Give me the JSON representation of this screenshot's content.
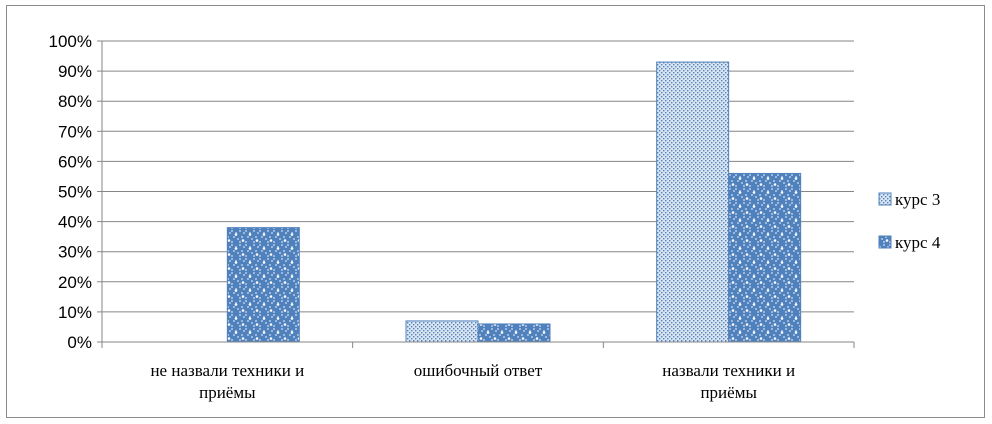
{
  "chart_data": {
    "type": "bar",
    "categories": [
      [
        "не назвали техники и",
        "приёмы"
      ],
      [
        "ошибочный ответ"
      ],
      [
        "назвали техники и",
        "приёмы"
      ]
    ],
    "series": [
      {
        "name": "курс 3",
        "values": [
          0,
          7,
          93
        ],
        "color": "#4f81bd",
        "pattern": "fine-dots"
      },
      {
        "name": "курс 4",
        "values": [
          38,
          6,
          56
        ],
        "color": "#4f81bd",
        "pattern": "checker-dots"
      }
    ],
    "ylim": [
      0,
      100
    ],
    "y_ticks": [
      0,
      10,
      20,
      30,
      40,
      50,
      60,
      70,
      80,
      90,
      100
    ],
    "y_tick_suffix": "%",
    "grid": true,
    "legend_position": "right",
    "title": "",
    "xlabel": "",
    "ylabel": ""
  }
}
